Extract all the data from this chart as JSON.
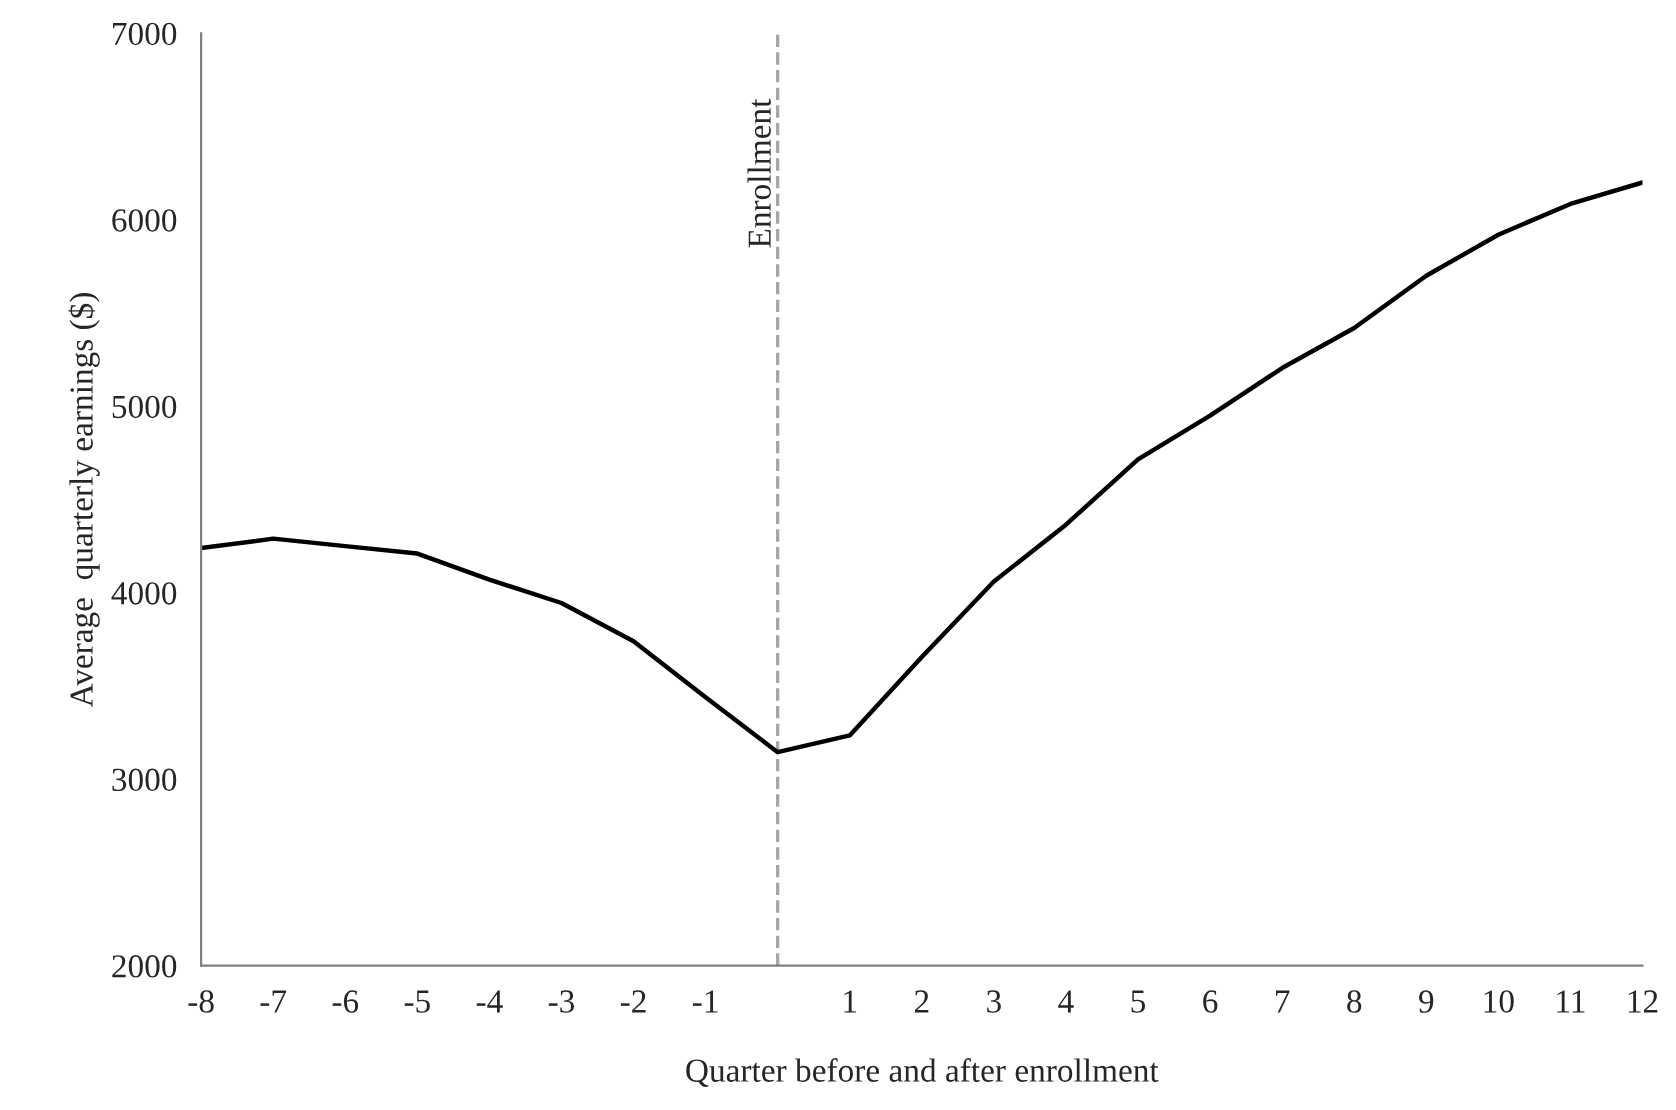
{
  "chart_data": {
    "type": "line",
    "xlabel": "Quarter before and after enrollment",
    "ylabel": "Average  quarterly earnings ($)",
    "x": [
      -8,
      -7,
      -6,
      -5,
      -4,
      -3,
      -2,
      -1,
      0,
      1,
      2,
      3,
      4,
      5,
      6,
      7,
      8,
      9,
      10,
      11,
      12
    ],
    "series": [
      {
        "color": "#000000",
        "values": [
          4240,
          4290,
          4250,
          4210,
          4070,
          3945,
          3740,
          3440,
          3145,
          3235,
          3655,
          4060,
          4365,
          4715,
          4950,
          5205,
          5420,
          5700,
          5920,
          6085,
          6200
        ]
      }
    ],
    "xlim": [
      -8,
      12
    ],
    "xticks": [
      -8,
      -7,
      -6,
      -5,
      -4,
      -3,
      -2,
      -1,
      {
        "value": 0,
        "label": null
      },
      1,
      2,
      3,
      4,
      5,
      6,
      7,
      8,
      9,
      10,
      11,
      12
    ],
    "ylim": [
      2000,
      7000
    ],
    "yticks": [
      2000,
      3000,
      4000,
      5000,
      6000,
      7000
    ],
    "ref_lines": [
      {
        "axis": "x",
        "value": 0,
        "label": "Enrollment",
        "color": "#a6a6a6",
        "line_style": "dashed"
      }
    ],
    "grid": false,
    "legend": false,
    "marker": "none",
    "line_style": "solid"
  }
}
